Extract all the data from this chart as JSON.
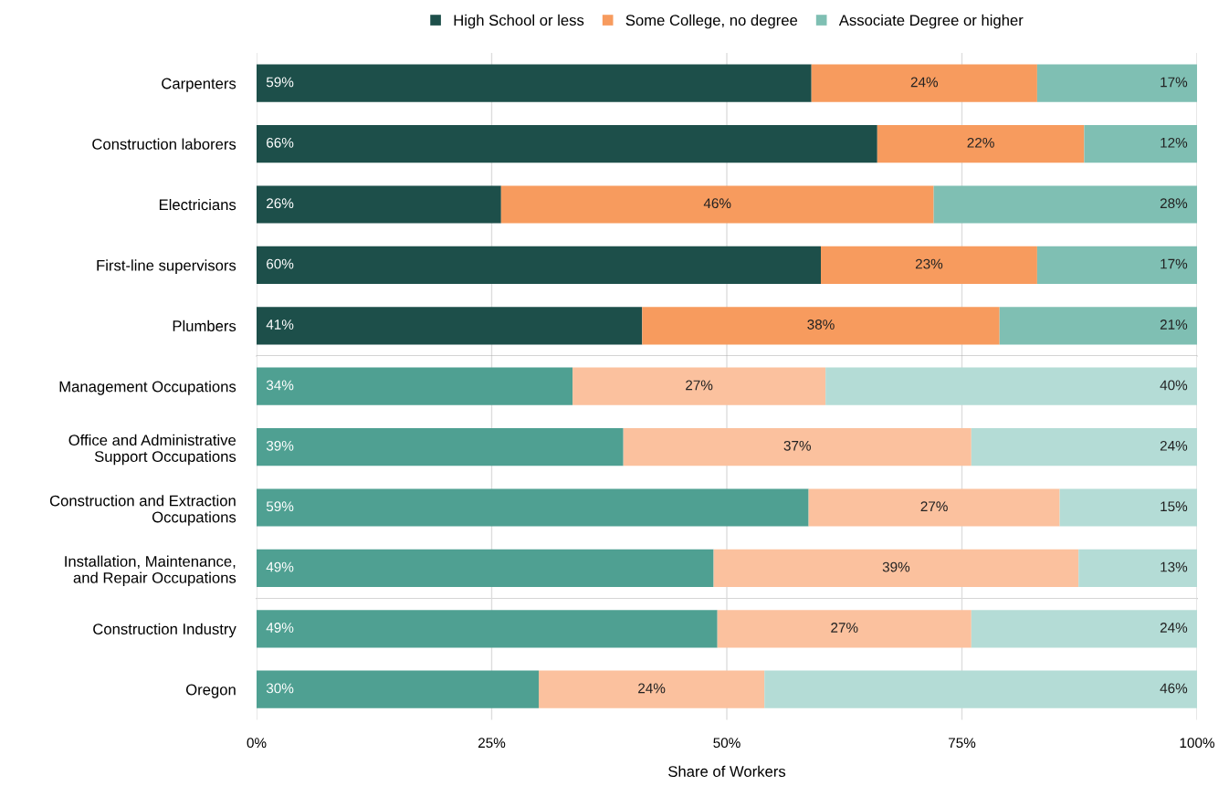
{
  "chart_data": [
    {
      "type": "bar",
      "orientation": "horizontal",
      "stacked": true,
      "legend": "top",
      "grid": "x",
      "tick_labels": "y",
      "xlim": [
        0,
        100
      ],
      "xticks": [
        {
          "value": 0,
          "label": null
        },
        {
          "value": 25,
          "label": null
        },
        {
          "value": 50,
          "label": null
        },
        {
          "value": 75,
          "label": null
        },
        {
          "value": 100,
          "label": null
        }
      ],
      "categories": [
        "Carpenters",
        "Construction laborers",
        "Electricians",
        "First-line supervisors",
        "Plumbers"
      ],
      "series": [
        {
          "name": "High School or less",
          "color": "#1d4f4a",
          "values": [
            59,
            66,
            26,
            60,
            41
          ],
          "value_labels": [
            "59%",
            "66%",
            "26%",
            "60%",
            "41%"
          ]
        },
        {
          "name": "Some College, no degree",
          "color": "#f79b5e",
          "values": [
            24,
            22,
            46,
            23,
            38
          ],
          "value_labels": [
            "24%",
            "22%",
            "46%",
            "23%",
            "38%"
          ]
        },
        {
          "name": "Associate Degree or higher",
          "color": "#7fbfb3",
          "values": [
            17,
            12,
            28,
            17,
            21
          ],
          "value_labels": [
            "17%",
            "12%",
            "28%",
            "17%",
            "21%"
          ]
        }
      ]
    },
    {
      "type": "bar",
      "orientation": "horizontal",
      "stacked": true,
      "grid": "x",
      "tick_labels": "y",
      "xlim": [
        0,
        100
      ],
      "xticks": [
        {
          "value": 0,
          "label": null
        },
        {
          "value": 25,
          "label": null
        },
        {
          "value": 50,
          "label": null
        },
        {
          "value": 75,
          "label": null
        },
        {
          "value": 100,
          "label": null
        }
      ],
      "categories": [
        "Management Occupations",
        "Office and Administrative\nSupport Occupations",
        "Construction and Extraction\nOccupations",
        "Installation, Maintenance,\nand Repair Occupations"
      ],
      "series": [
        {
          "color": "#4fa092",
          "values": [
            33.6,
            39,
            58.7,
            48.6
          ],
          "value_labels": [
            "34%",
            "39%",
            "59%",
            "49%"
          ]
        },
        {
          "color": "#fbc19e",
          "values": [
            26.9,
            37,
            26.7,
            38.8
          ],
          "value_labels": [
            "27%",
            "37%",
            "27%",
            "39%"
          ]
        },
        {
          "color": "#b4dcd6",
          "values": [
            39.5,
            24,
            14.6,
            12.6
          ],
          "value_labels": [
            "40%",
            "24%",
            "15%",
            "13%"
          ]
        }
      ]
    },
    {
      "type": "bar",
      "orientation": "horizontal",
      "stacked": true,
      "grid": "x",
      "xlabel": "Share of Workers",
      "xlim": [
        0,
        100
      ],
      "xticks": [
        {
          "value": 0,
          "label": "0%"
        },
        {
          "value": 25,
          "label": "25%"
        },
        {
          "value": 50,
          "label": "50%"
        },
        {
          "value": 75,
          "label": "75%"
        },
        {
          "value": 100,
          "label": "100%"
        }
      ],
      "categories": [
        "Construction Industry",
        "Oregon"
      ],
      "series": [
        {
          "color": "#4fa092",
          "values": [
            49,
            30
          ],
          "value_labels": [
            "49%",
            "30%"
          ]
        },
        {
          "color": "#fbc19e",
          "values": [
            27,
            24
          ],
          "value_labels": [
            "27%",
            "24%"
          ]
        },
        {
          "color": "#b4dcd6",
          "values": [
            24,
            46
          ],
          "value_labels": [
            "24%",
            "46%"
          ]
        }
      ]
    }
  ]
}
